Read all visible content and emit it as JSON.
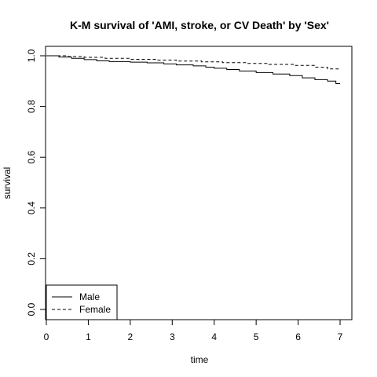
{
  "chart_data": {
    "type": "line",
    "title": "K-M survival of 'AMI, stroke, or CV Death' by 'Sex'",
    "xlabel": "time",
    "ylabel": "survival",
    "xlim": [
      0,
      7.2
    ],
    "ylim": [
      0,
      1.0
    ],
    "x_ticks": [
      0,
      1,
      2,
      3,
      4,
      5,
      6,
      7
    ],
    "y_ticks": [
      0.0,
      0.2,
      0.4,
      0.6,
      0.8,
      1.0
    ],
    "x_tick_labels": [
      "0",
      "1",
      "2",
      "3",
      "4",
      "5",
      "6",
      "7"
    ],
    "y_tick_labels": [
      "0.0",
      "0.2",
      "0.4",
      "0.6",
      "0.8",
      "1.0"
    ],
    "legend_placement": "bottom-left",
    "series": [
      {
        "name": "Male",
        "line_style": "solid",
        "x": [
          0,
          0.3,
          0.6,
          0.9,
          1.2,
          1.5,
          2.0,
          2.4,
          2.8,
          3.1,
          3.5,
          3.8,
          4.0,
          4.3,
          4.6,
          5.0,
          5.4,
          5.8,
          6.1,
          6.4,
          6.7,
          6.9,
          7.0
        ],
        "y": [
          1.0,
          0.995,
          0.99,
          0.985,
          0.98,
          0.977,
          0.975,
          0.972,
          0.968,
          0.964,
          0.96,
          0.955,
          0.951,
          0.946,
          0.94,
          0.934,
          0.928,
          0.922,
          0.913,
          0.906,
          0.9,
          0.89,
          0.89
        ]
      },
      {
        "name": "Female",
        "line_style": "dashed",
        "x": [
          0,
          0.5,
          0.9,
          1.4,
          2.0,
          2.6,
          3.1,
          3.7,
          4.2,
          4.8,
          5.3,
          5.9,
          6.4,
          6.7,
          7.0
        ],
        "y": [
          1.0,
          0.997,
          0.994,
          0.99,
          0.986,
          0.983,
          0.979,
          0.976,
          0.973,
          0.97,
          0.966,
          0.962,
          0.955,
          0.948,
          0.948
        ]
      }
    ]
  }
}
